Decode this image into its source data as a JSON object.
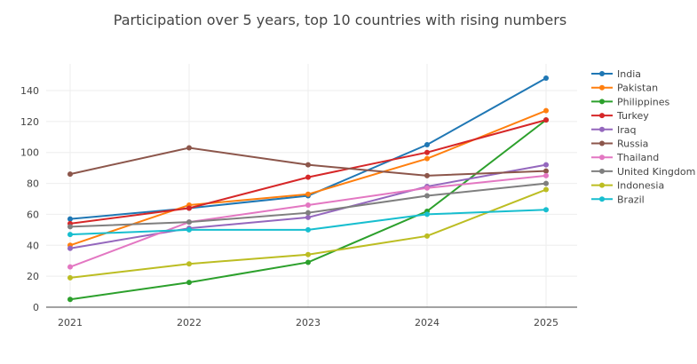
{
  "chart_data": {
    "type": "line",
    "title": "Participation over 5 years, top 10 countries with rising numbers",
    "xlabel": "",
    "ylabel": "",
    "x": [
      "2021",
      "2022",
      "2023",
      "2024",
      "2025"
    ],
    "ylim": [
      0,
      158
    ],
    "yticks": [
      0,
      20,
      40,
      60,
      80,
      100,
      120,
      140
    ],
    "grid": true,
    "legend_position": "right",
    "series": [
      {
        "name": "India",
        "color": "#1f77b4",
        "values": [
          57,
          64,
          72,
          105,
          148
        ]
      },
      {
        "name": "Pakistan",
        "color": "#ff7f0e",
        "values": [
          40,
          66,
          73,
          96,
          127
        ]
      },
      {
        "name": "Philippines",
        "color": "#2ca02c",
        "values": [
          5,
          16,
          29,
          62,
          121
        ]
      },
      {
        "name": "Turkey",
        "color": "#d62728",
        "values": [
          54,
          64,
          84,
          100,
          121
        ]
      },
      {
        "name": "Iraq",
        "color": "#9467bd",
        "values": [
          38,
          51,
          58,
          78,
          92
        ]
      },
      {
        "name": "Russia",
        "color": "#8c564b",
        "values": [
          86,
          103,
          92,
          85,
          88
        ]
      },
      {
        "name": "Thailand",
        "color": "#e377c2",
        "values": [
          26,
          55,
          66,
          77,
          85
        ]
      },
      {
        "name": "United Kingdom",
        "color": "#7f7f7f",
        "values": [
          52,
          55,
          61,
          72,
          80
        ]
      },
      {
        "name": "Indonesia",
        "color": "#bcbd22",
        "values": [
          19,
          28,
          34,
          46,
          76
        ]
      },
      {
        "name": "Brazil",
        "color": "#17becf",
        "values": [
          47,
          50,
          50,
          60,
          63
        ]
      }
    ]
  }
}
